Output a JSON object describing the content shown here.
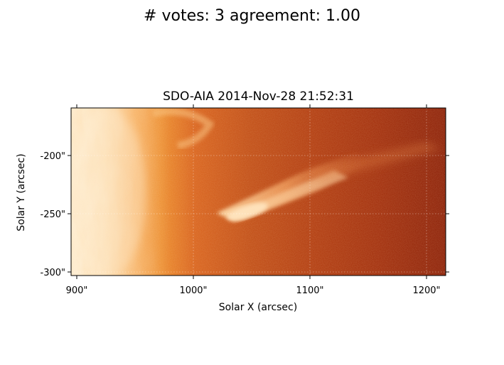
{
  "figure": {
    "suptitle": "# votes: 3 agreement: 1.00",
    "plot_title": "SDO-AIA   2014-Nov-28 21:52:31"
  },
  "axes": {
    "xlabel": "Solar X (arcsec)",
    "ylabel": "Solar Y (arcsec)",
    "x_ticks": [
      "900\"",
      "1000\"",
      "1100\"",
      "1200\""
    ],
    "y_ticks": [
      "-200\"",
      "-250\"",
      "-300\""
    ],
    "x_tick_values": [
      900,
      1000,
      1100,
      1200
    ],
    "y_tick_values": [
      -200,
      -250,
      -300
    ],
    "x_range": [
      893,
      1216
    ],
    "y_range": [
      -303,
      -159
    ],
    "grid": true
  },
  "image": {
    "colormap": "sdoaia171-like orange/red",
    "colors": {
      "limb_bright": "#fde2b8",
      "limb_mid": "#f5a04a",
      "disk_orange": "#e8781e",
      "background_dark": "#a82a08",
      "background_darker": "#8e1d04",
      "jet": "#ffcf96"
    }
  }
}
